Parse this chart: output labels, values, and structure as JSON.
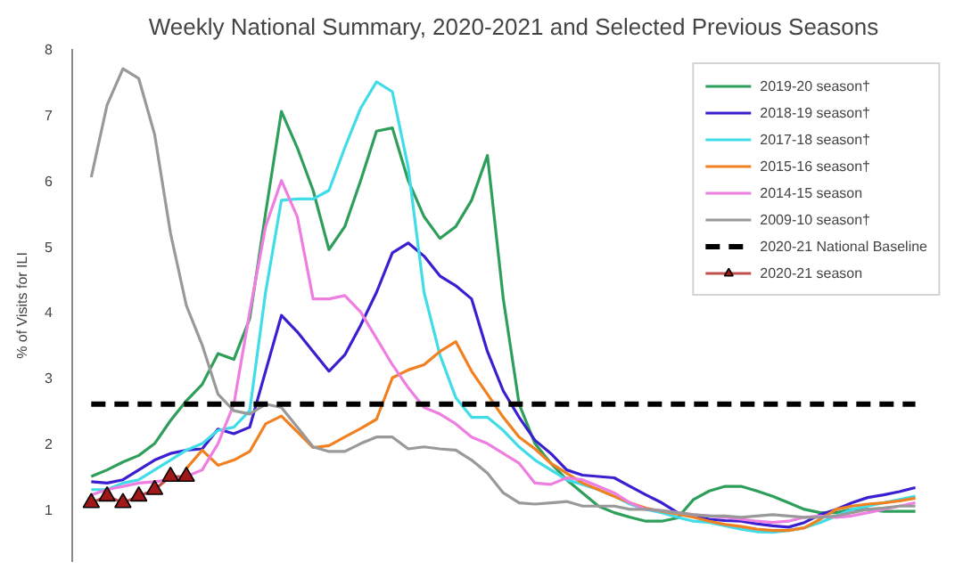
{
  "chart_data": {
    "type": "line",
    "title": "Weekly National Summary, 2020-2021 and Selected Previous Seasons",
    "ylabel": "% of Visits for ILI",
    "categories": [
      null,
      null,
      null,
      null,
      null,
      null,
      null,
      null,
      null,
      null,
      null,
      null,
      null,
      null,
      null,
      null,
      null,
      null,
      null,
      null,
      null,
      null,
      null,
      null,
      null,
      null,
      null,
      null,
      null,
      null,
      null,
      null,
      null,
      null,
      null,
      null,
      null,
      null,
      null,
      null,
      null,
      null,
      null,
      null,
      null,
      null,
      null,
      null,
      null,
      null,
      null,
      null,
      null
    ],
    "ylim": [
      0.2,
      8
    ],
    "yticks": [
      1,
      2,
      3,
      4,
      5,
      6,
      7,
      8
    ],
    "tick_labels": "y",
    "grid": false,
    "legend": "top right",
    "marker": "none",
    "line_style": "solid",
    "series": [
      {
        "name": "2019-20 season†",
        "color": "#2e9e5b",
        "values": [
          1.5,
          1.6,
          1.72,
          1.82,
          2.0,
          2.35,
          2.65,
          2.9,
          3.37,
          3.28,
          3.9,
          5.5,
          7.05,
          6.5,
          5.85,
          4.95,
          5.3,
          6.0,
          6.75,
          6.8,
          6.0,
          5.45,
          5.12,
          5.3,
          5.7,
          6.38,
          4.2,
          2.6,
          2.0,
          1.7,
          1.45,
          1.25,
          1.05,
          0.95,
          0.88,
          0.82,
          0.82,
          0.87,
          1.15,
          1.28,
          1.35,
          1.35,
          1.28,
          1.2,
          1.1,
          1.0,
          0.95,
          0.95,
          1.0,
          1.0,
          0.97,
          0.97,
          0.97
        ]
      },
      {
        "name": "2018-19 season†",
        "color": "#3a1fd0",
        "values": [
          1.42,
          1.4,
          1.45,
          1.6,
          1.75,
          1.85,
          1.9,
          1.92,
          2.22,
          2.15,
          2.25,
          3.1,
          3.95,
          3.7,
          3.4,
          3.1,
          3.35,
          3.8,
          4.3,
          4.9,
          5.05,
          4.85,
          4.55,
          4.4,
          4.2,
          3.4,
          2.8,
          2.4,
          2.05,
          1.85,
          1.6,
          1.52,
          1.5,
          1.48,
          1.35,
          1.22,
          1.1,
          0.95,
          0.9,
          0.85,
          0.83,
          0.82,
          0.78,
          0.75,
          0.73,
          0.8,
          0.92,
          1.0,
          1.1,
          1.18,
          1.22,
          1.27,
          1.33
        ]
      },
      {
        "name": "2017-18 season†",
        "color": "#40dce8",
        "values": [
          1.3,
          1.3,
          1.4,
          1.45,
          1.6,
          1.75,
          1.9,
          2.0,
          2.2,
          2.25,
          2.5,
          4.3,
          5.7,
          5.72,
          5.72,
          5.85,
          6.5,
          7.1,
          7.5,
          7.35,
          6.2,
          4.3,
          3.35,
          2.7,
          2.4,
          2.4,
          2.2,
          1.95,
          1.75,
          1.6,
          1.45,
          1.38,
          1.3,
          1.2,
          1.08,
          1.0,
          0.95,
          0.88,
          0.82,
          0.8,
          0.75,
          0.7,
          0.66,
          0.65,
          0.68,
          0.72,
          0.8,
          0.9,
          1.0,
          1.05,
          1.1,
          1.15,
          1.2
        ]
      },
      {
        "name": "2015-16 season†",
        "color": "#f08020",
        "values": [
          null,
          null,
          null,
          null,
          null,
          null,
          1.62,
          1.9,
          1.67,
          1.75,
          1.88,
          2.3,
          2.42,
          2.18,
          1.94,
          1.97,
          2.1,
          2.23,
          2.37,
          3.0,
          3.12,
          3.2,
          3.4,
          3.55,
          3.1,
          2.75,
          2.4,
          2.1,
          1.92,
          1.7,
          1.55,
          1.4,
          1.3,
          1.2,
          1.1,
          1.02,
          0.97,
          0.93,
          0.88,
          0.82,
          0.77,
          0.74,
          0.7,
          0.68,
          0.68,
          0.72,
          0.85,
          1.0,
          1.05,
          1.08,
          1.1,
          1.13,
          1.17
        ]
      },
      {
        "name": "2014-15 season",
        "color": "#ee7ee0",
        "values": [
          1.22,
          1.3,
          1.35,
          1.4,
          1.42,
          1.45,
          1.5,
          1.6,
          2.0,
          2.6,
          4.0,
          5.3,
          6.0,
          5.45,
          4.2,
          4.2,
          4.25,
          4.0,
          3.6,
          3.2,
          2.85,
          2.55,
          2.45,
          2.3,
          2.1,
          2.0,
          1.85,
          1.7,
          1.4,
          1.38,
          1.48,
          1.45,
          1.35,
          1.25,
          1.1,
          1.0,
          0.98,
          0.95,
          0.92,
          0.9,
          0.88,
          0.85,
          0.82,
          0.8,
          0.82,
          0.88,
          0.9,
          0.88,
          0.9,
          0.95,
          1.0,
          1.05,
          1.1
        ]
      },
      {
        "name": "2009-10 season†",
        "color": "#999999",
        "values": [
          6.05,
          7.15,
          7.7,
          7.55,
          6.7,
          5.2,
          4.1,
          3.5,
          2.75,
          2.5,
          2.45,
          2.6,
          2.55,
          2.25,
          1.95,
          1.88,
          1.88,
          2.0,
          2.1,
          2.1,
          1.92,
          1.95,
          1.92,
          1.9,
          1.75,
          1.55,
          1.25,
          1.1,
          1.08,
          1.1,
          1.12,
          1.05,
          1.05,
          1.05,
          1.0,
          1.0,
          0.98,
          0.95,
          0.92,
          0.9,
          0.9,
          0.88,
          0.9,
          0.92,
          0.9,
          0.88,
          0.88,
          0.9,
          0.95,
          1.0,
          1.02,
          1.05,
          1.05
        ]
      },
      {
        "name": "2020-21 season",
        "color": "#c0504d",
        "marker": "triangle",
        "values": [
          1.1,
          1.2,
          1.1,
          1.2,
          1.3,
          1.5,
          1.5,
          null,
          null,
          null,
          null,
          null,
          null,
          null,
          null,
          null,
          null,
          null,
          null,
          null,
          null,
          null,
          null,
          null,
          null,
          null,
          null,
          null,
          null,
          null,
          null,
          null,
          null,
          null,
          null,
          null,
          null,
          null,
          null,
          null,
          null,
          null,
          null,
          null,
          null,
          null,
          null,
          null,
          null,
          null,
          null,
          null,
          null
        ]
      }
    ],
    "ref_lines": [
      {
        "axis": "y",
        "value": 2.6,
        "label": "2020-21 National Baseline",
        "color": "#000000",
        "line_style": "dashed"
      }
    ]
  }
}
